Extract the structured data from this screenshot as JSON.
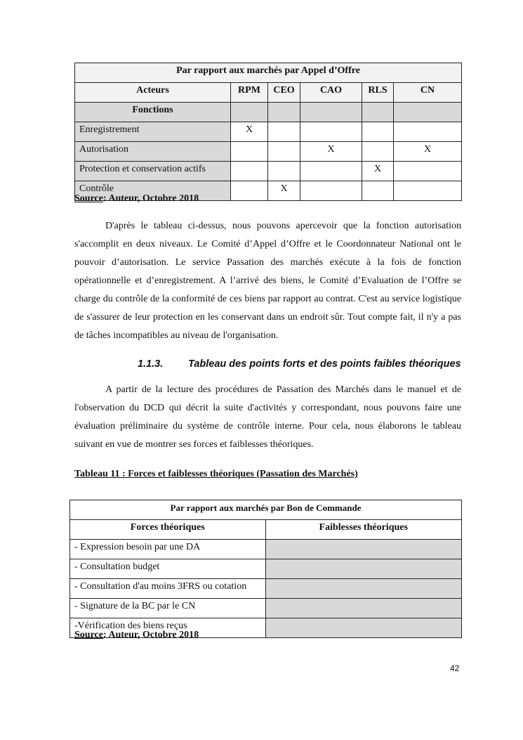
{
  "table1": {
    "title": "Par rapport aux marchés par Appel d’Offre",
    "actors_label": "Acteurs",
    "columns": [
      "RPM",
      "CEO",
      "CAO",
      "RLS",
      "CN"
    ],
    "functions_label": "Fonctions",
    "rows": [
      {
        "label": "Enregistrement",
        "marks": [
          "X",
          "",
          "",
          "",
          ""
        ]
      },
      {
        "label": "Autorisation",
        "marks": [
          "",
          "",
          "X",
          "",
          "X"
        ]
      },
      {
        "label": "Protection et conservation actifs",
        "marks": [
          "",
          "",
          "",
          "X",
          ""
        ]
      },
      {
        "label": "Contrôle",
        "marks": [
          "",
          "X",
          "",
          "",
          ""
        ]
      }
    ]
  },
  "source1": {
    "label": "Source",
    "rest": ": Auteur, Octobre 2018"
  },
  "paragraph1": "D'après le tableau ci-dessus, nous pouvons apercevoir que la fonction autorisation s'accomplit en deux niveaux. Le Comité d’Appel d’Offre et le Coordonnateur National ont le pouvoir d’autorisation. Le service Passation des marchés exécute à la fois de fonction opérationnelle et d’enregistrement. A l’arrivé des biens, le Comité d’Evaluation de l’Offre se charge du contrôle de la conformité de ces biens par rapport au contrat. C'est au service logistique de s'assurer de leur protection en les conservant dans un endroit sûr. Tout compte fait, il n'y a pas de tâches incompatibles au niveau de l'organisation.",
  "heading": {
    "number": "1.1.3.",
    "title": "Tableau des points forts et des points faibles théoriques"
  },
  "paragraph2": "A partir de la lecture des procédures de Passation des Marchés dans le manuel et de l'observation du DCD qui décrit la suite d'activités y correspondant, nous pouvons faire une évaluation préliminaire du système de contrôle interne. Pour cela, nous élaborons le tableau suivant en vue de montrer ses forces et faiblesses théoriques.",
  "caption": "Tableau 11 : Forces et faiblesses théoriques (Passation des Marchés)",
  "table2": {
    "title": "Par rapport aux marchés par Bon de Commande",
    "col_forces": "Forces théoriques",
    "col_faiblesses": "Faiblesses théoriques",
    "forces": [
      "- Expression besoin par une DA",
      "- Consultation budget",
      "- Consultation d'au moins 3FRS ou cotation",
      "- Signature de la BC par le CN",
      "-Vérification des biens reçus"
    ]
  },
  "source2": {
    "label": "Source",
    "rest": ": Auteur, Octobre 2018"
  },
  "page_number": "42"
}
